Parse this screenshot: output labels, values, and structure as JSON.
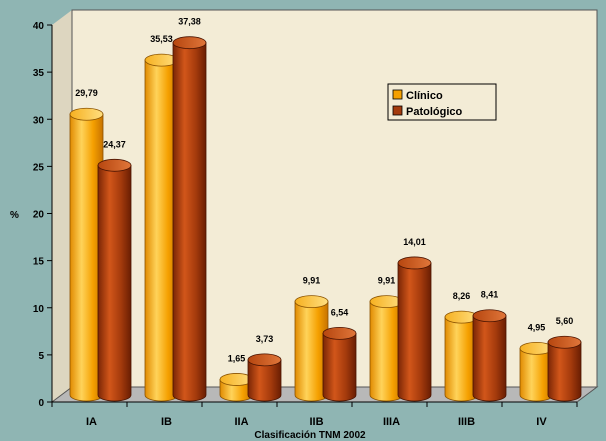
{
  "chart_data": {
    "type": "bar",
    "title": "",
    "xlabel": "Clasificación TNM 2002",
    "ylabel": "%",
    "ylim": [
      0,
      40
    ],
    "yticks": [
      0,
      5,
      10,
      15,
      20,
      25,
      30,
      35,
      40
    ],
    "categories": [
      "IA",
      "IB",
      "IIA",
      "IIB",
      "IIIA",
      "IIIB",
      "IV"
    ],
    "series": [
      {
        "name": "Clínico",
        "values": [
          29.79,
          35.53,
          1.65,
          9.91,
          9.91,
          8.26,
          4.95
        ],
        "labels": [
          "29,79",
          "35,53",
          "1,65",
          "9,91",
          "9,91",
          "8,26",
          "4,95"
        ],
        "color": "#f5a000"
      },
      {
        "name": "Patológico",
        "values": [
          24.37,
          37.38,
          3.73,
          6.54,
          14.01,
          8.41,
          5.6
        ],
        "labels": [
          "24,37",
          "37,38",
          "3,73",
          "6,54",
          "14,01",
          "8,41",
          "5,60"
        ],
        "color": "#a33a0c"
      }
    ],
    "legend_position": "top-right",
    "grid": false,
    "style": "3d-cylinder",
    "colors": {
      "background": "#8fb5b3",
      "plot_wall": "#f3ecd6",
      "floor": "#b8b8b8"
    }
  }
}
